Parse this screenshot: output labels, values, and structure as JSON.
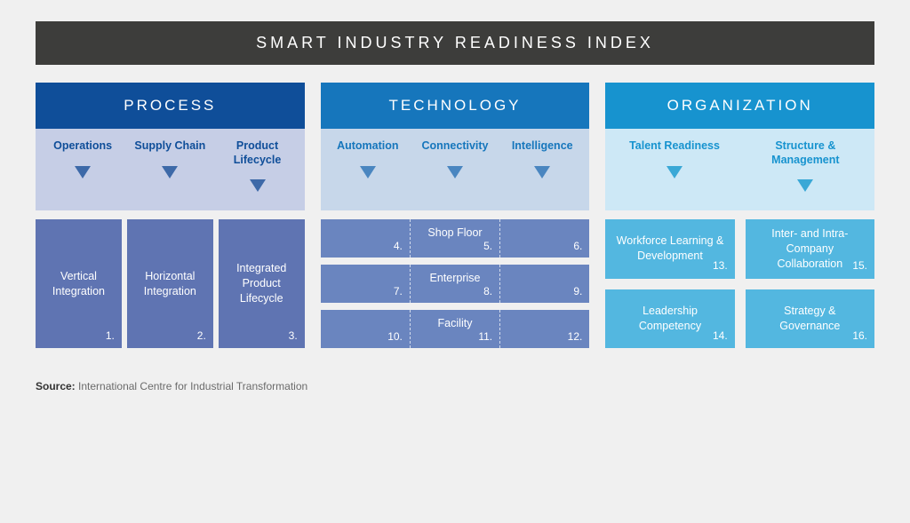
{
  "title": "SMART INDUSTRY READINESS INDEX",
  "colors": {
    "page_bg": "#f0f0f0",
    "title_bg": "#3d3d3b",
    "title_text": "#ffffff",
    "process_header": "#0f4e99",
    "process_sub_bg": "#c6cee6",
    "process_sub_text": "#0f4e99",
    "process_block": "#5f74b2",
    "process_triangle": "#3d69a8",
    "tech_header": "#1676bc",
    "tech_sub_bg": "#c7d7ea",
    "tech_sub_text": "#1676bc",
    "tech_block": "#6a85bf",
    "tech_triangle": "#4a86c0",
    "org_header": "#1793cf",
    "org_sub_bg": "#cde8f6",
    "org_sub_text": "#1793cf",
    "org_block": "#53b7e0",
    "org_triangle": "#3aa8d6"
  },
  "pillars": [
    {
      "key": "process",
      "title": "PROCESS",
      "subs": [
        "Operations",
        "Supply Chain",
        "Product Lifecycle"
      ],
      "blocks": [
        {
          "label": "Vertical Integration",
          "n": "1."
        },
        {
          "label": "Horizontal Integration",
          "n": "2."
        },
        {
          "label": "Integrated Product Lifecycle",
          "n": "3."
        }
      ]
    },
    {
      "key": "technology",
      "title": "TECHNOLOGY",
      "subs": [
        "Automation",
        "Connectivity",
        "Intelligence"
      ],
      "rows": [
        {
          "label": "Shop Floor",
          "nums": [
            "4.",
            "5.",
            "6."
          ]
        },
        {
          "label": "Enterprise",
          "nums": [
            "7.",
            "8.",
            "9."
          ]
        },
        {
          "label": "Facility",
          "nums": [
            "10.",
            "11.",
            "12."
          ]
        }
      ]
    },
    {
      "key": "organization",
      "title": "ORGANIZATION",
      "subs": [
        "Talent Readiness",
        "Structure & Management"
      ],
      "blocks": [
        {
          "label": "Workforce Learning & Development",
          "n": "13."
        },
        {
          "label": "Inter- and Intra-Company Collaboration",
          "n": "15."
        },
        {
          "label": "Leadership Competency",
          "n": "14."
        },
        {
          "label": "Strategy & Governance",
          "n": "16."
        }
      ]
    }
  ],
  "source_label": "Source:",
  "source_text": "International Centre for Industrial Transformation"
}
